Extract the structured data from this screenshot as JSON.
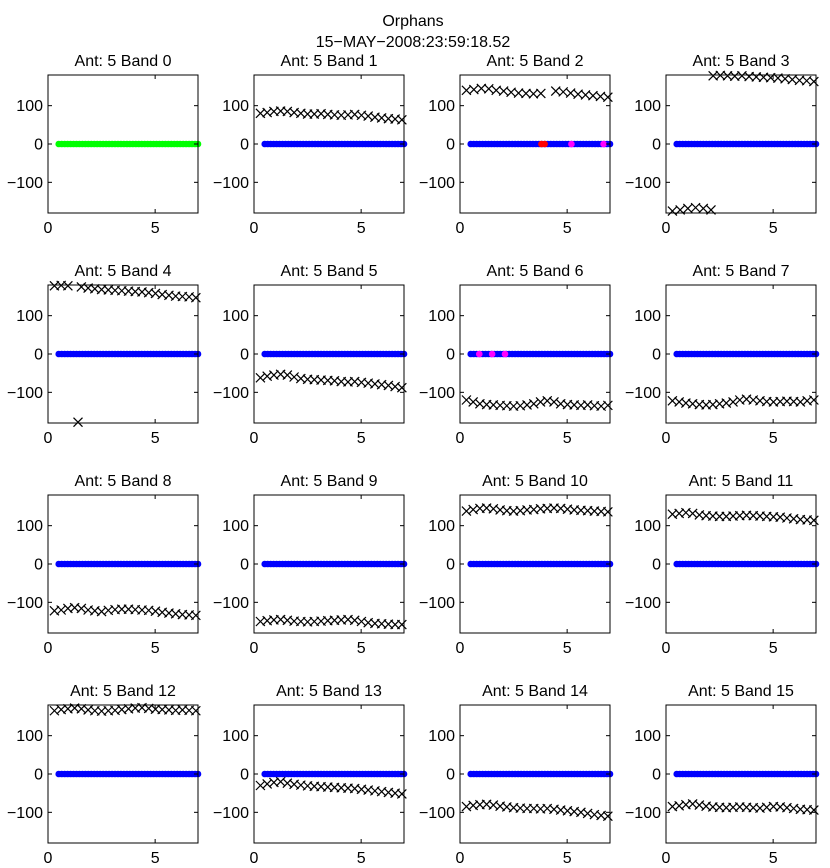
{
  "figure": {
    "title": "Orphans",
    "subtitle": "15−MAY−2008:23:59:18.52"
  },
  "chart_data": [
    {
      "type": "scatter",
      "title": "Ant: 5 Band 0",
      "xlim": [
        0,
        7
      ],
      "ylim": [
        -180,
        180
      ],
      "xticks": [
        "0",
        "5"
      ],
      "yticks": [
        "100",
        "0",
        "−100"
      ],
      "series": [
        {
          "name": "dots",
          "color": "#00ff00",
          "marker": "dot",
          "x_range": [
            0.5,
            7.0
          ],
          "y": [
            0
          ]
        }
      ]
    },
    {
      "type": "scatter",
      "title": "Ant: 5 Band 1",
      "xlim": [
        0,
        7
      ],
      "ylim": [
        -180,
        180
      ],
      "xticks": [
        "0",
        "5"
      ],
      "yticks": [
        "100",
        "0",
        "−100"
      ],
      "series": [
        {
          "name": "phase",
          "color": "#000000",
          "marker": "x",
          "x_range": [
            0.3,
            6.9
          ],
          "y": [
            80,
            82,
            85,
            86,
            85,
            82,
            80,
            78,
            78,
            79,
            77,
            76,
            75,
            76,
            77,
            75,
            73,
            70,
            68,
            66,
            65,
            63
          ]
        },
        {
          "name": "dots",
          "color": "#0000ff",
          "marker": "dot",
          "x_range": [
            0.5,
            7.0
          ],
          "y": [
            0
          ]
        }
      ]
    },
    {
      "type": "scatter",
      "title": "Ant: 5 Band 2",
      "xlim": [
        0,
        7
      ],
      "ylim": [
        -180,
        180
      ],
      "xticks": [
        "0",
        "5"
      ],
      "yticks": [
        "100",
        "0",
        "−100"
      ],
      "series": [
        {
          "name": "phase",
          "color": "#000000",
          "marker": "x",
          "x_range": [
            0.3,
            6.9
          ],
          "y": [
            140,
            142,
            145,
            144,
            140,
            138,
            135,
            133,
            132,
            131,
            132,
            null,
            138,
            136,
            133,
            130,
            128,
            126,
            124,
            122
          ]
        },
        {
          "name": "dots",
          "color": "#0000ff",
          "marker": "dot",
          "x_range": [
            0.5,
            7.0
          ],
          "y": [
            0
          ]
        },
        {
          "name": "red",
          "color": "#ff0000",
          "marker": "dot",
          "points": [
            [
              3.8,
              0
            ],
            [
              3.95,
              0
            ]
          ]
        },
        {
          "name": "magenta",
          "color": "#ff00ff",
          "marker": "dot",
          "points": [
            [
              5.2,
              0
            ],
            [
              6.7,
              0
            ]
          ]
        }
      ]
    },
    {
      "type": "scatter",
      "title": "Ant: 5 Band 3",
      "xlim": [
        0,
        7
      ],
      "ylim": [
        -180,
        180
      ],
      "xticks": [
        "0",
        "5"
      ],
      "yticks": [
        "100",
        "0",
        "−100"
      ],
      "series": [
        {
          "name": "phase_low",
          "color": "#000000",
          "marker": "x",
          "x_range": [
            0.3,
            2.1
          ],
          "y": [
            -175,
            -172,
            -168,
            -166,
            -168,
            -172
          ]
        },
        {
          "name": "phase_high",
          "color": "#000000",
          "marker": "x",
          "x_range": [
            2.2,
            6.9
          ],
          "y": [
            178,
            179,
            178,
            177,
            178,
            176,
            175,
            174,
            173,
            172,
            170,
            168,
            166,
            165,
            163
          ]
        },
        {
          "name": "dots",
          "color": "#0000ff",
          "marker": "dot",
          "x_range": [
            0.5,
            7.0
          ],
          "y": [
            0
          ]
        }
      ]
    },
    {
      "type": "scatter",
      "title": "Ant: 5 Band 4",
      "xlim": [
        0,
        7
      ],
      "ylim": [
        -180,
        180
      ],
      "xticks": [
        "0",
        "5"
      ],
      "yticks": [
        "100",
        "0",
        "−100"
      ],
      "series": [
        {
          "name": "phase",
          "color": "#000000",
          "marker": "x",
          "x_range": [
            0.3,
            6.9
          ],
          "y": [
            178,
            179,
            178,
            null,
            175,
            172,
            170,
            168,
            167,
            166,
            165,
            164,
            163,
            162,
            160,
            158,
            155,
            153,
            151,
            150,
            149,
            147
          ]
        },
        {
          "name": "outlier",
          "color": "#000000",
          "marker": "x",
          "points": [
            [
              1.4,
              -178
            ]
          ]
        },
        {
          "name": "dots",
          "color": "#0000ff",
          "marker": "dot",
          "x_range": [
            0.5,
            7.0
          ],
          "y": [
            0
          ]
        }
      ]
    },
    {
      "type": "scatter",
      "title": "Ant: 5 Band 5",
      "xlim": [
        0,
        7
      ],
      "ylim": [
        -180,
        180
      ],
      "xticks": [
        "0",
        "5"
      ],
      "yticks": [
        "100",
        "0",
        "−100"
      ],
      "series": [
        {
          "name": "phase",
          "color": "#000000",
          "marker": "x",
          "x_range": [
            0.3,
            6.9
          ],
          "y": [
            -62,
            -58,
            -55,
            -53,
            -55,
            -60,
            -64,
            -66,
            -67,
            -68,
            -69,
            -70,
            -72,
            -73,
            -72,
            -74,
            -76,
            -78,
            -80,
            -82,
            -85,
            -88
          ]
        },
        {
          "name": "dots",
          "color": "#0000ff",
          "marker": "dot",
          "x_range": [
            0.5,
            7.0
          ],
          "y": [
            0
          ]
        }
      ]
    },
    {
      "type": "scatter",
      "title": "Ant: 5 Band 6",
      "xlim": [
        0,
        7
      ],
      "ylim": [
        -180,
        180
      ],
      "xticks": [
        "0",
        "5"
      ],
      "yticks": [
        "100",
        "0",
        "−100"
      ],
      "series": [
        {
          "name": "phase",
          "color": "#000000",
          "marker": "x",
          "x_range": [
            0.3,
            6.9
          ],
          "y": [
            -120,
            -125,
            -130,
            -132,
            -133,
            -134,
            -135,
            -136,
            -135,
            -133,
            -130,
            -125,
            -122,
            -125,
            -130,
            -132,
            -133,
            -134,
            -133,
            -135,
            -136,
            -134
          ]
        },
        {
          "name": "dots",
          "color": "#0000ff",
          "marker": "dot",
          "x_range": [
            0.5,
            7.0
          ],
          "y": [
            0
          ]
        },
        {
          "name": "magenta",
          "color": "#ff00ff",
          "marker": "dot",
          "points": [
            [
              0.9,
              0
            ],
            [
              1.5,
              0
            ],
            [
              2.1,
              0
            ]
          ]
        }
      ]
    },
    {
      "type": "scatter",
      "title": "Ant: 5 Band 7",
      "xlim": [
        0,
        7
      ],
      "ylim": [
        -180,
        180
      ],
      "xticks": [
        "0",
        "5"
      ],
      "yticks": [
        "100",
        "0",
        "−100"
      ],
      "series": [
        {
          "name": "phase",
          "color": "#000000",
          "marker": "x",
          "x_range": [
            0.3,
            6.9
          ],
          "y": [
            -122,
            -125,
            -128,
            -130,
            -132,
            -133,
            -132,
            -130,
            -128,
            -125,
            -120,
            -118,
            -120,
            -122,
            -124,
            -125,
            -124,
            -123,
            -124,
            -125,
            -122,
            -120
          ]
        },
        {
          "name": "dots",
          "color": "#0000ff",
          "marker": "dot",
          "x_range": [
            0.5,
            7.0
          ],
          "y": [
            0
          ]
        }
      ]
    },
    {
      "type": "scatter",
      "title": "Ant: 5 Band 8",
      "xlim": [
        0,
        7
      ],
      "ylim": [
        -180,
        180
      ],
      "xticks": [
        "0",
        "5"
      ],
      "yticks": [
        "100",
        "0",
        "−100"
      ],
      "series": [
        {
          "name": "phase",
          "color": "#000000",
          "marker": "x",
          "x_range": [
            0.3,
            6.9
          ],
          "y": [
            -122,
            -120,
            -116,
            -114,
            -116,
            -120,
            -122,
            -124,
            -121,
            -119,
            -118,
            -118,
            -119,
            -120,
            -121,
            -123,
            -126,
            -128,
            -130,
            -132,
            -133,
            -134
          ]
        },
        {
          "name": "dots",
          "color": "#0000ff",
          "marker": "dot",
          "x_range": [
            0.5,
            7.0
          ],
          "y": [
            0
          ]
        }
      ]
    },
    {
      "type": "scatter",
      "title": "Ant: 5 Band 9",
      "xlim": [
        0,
        7
      ],
      "ylim": [
        -180,
        180
      ],
      "xticks": [
        "0",
        "5"
      ],
      "yticks": [
        "100",
        "0",
        "−100"
      ],
      "series": [
        {
          "name": "phase",
          "color": "#000000",
          "marker": "x",
          "x_range": [
            0.3,
            6.9
          ],
          "y": [
            -150,
            -148,
            -146,
            -145,
            -147,
            -149,
            -150,
            -151,
            -150,
            -149,
            -148,
            -147,
            -146,
            -145,
            -147,
            -150,
            -153,
            -155,
            -156,
            -157,
            -158,
            -158
          ]
        },
        {
          "name": "dots",
          "color": "#0000ff",
          "marker": "dot",
          "x_range": [
            0.5,
            7.0
          ],
          "y": [
            0
          ]
        }
      ]
    },
    {
      "type": "scatter",
      "title": "Ant: 5 Band 10",
      "xlim": [
        0,
        7
      ],
      "ylim": [
        -180,
        180
      ],
      "xticks": [
        "0",
        "5"
      ],
      "yticks": [
        "100",
        "0",
        "−100"
      ],
      "series": [
        {
          "name": "phase",
          "color": "#000000",
          "marker": "x",
          "x_range": [
            0.3,
            6.9
          ],
          "y": [
            138,
            142,
            145,
            146,
            144,
            141,
            139,
            138,
            139,
            141,
            142,
            144,
            145,
            146,
            145,
            143,
            141,
            140,
            139,
            138,
            137,
            136
          ]
        },
        {
          "name": "dots",
          "color": "#0000ff",
          "marker": "dot",
          "x_range": [
            0.5,
            7.0
          ],
          "y": [
            0
          ]
        }
      ]
    },
    {
      "type": "scatter",
      "title": "Ant: 5 Band 11",
      "xlim": [
        0,
        7
      ],
      "ylim": [
        -180,
        180
      ],
      "xticks": [
        "0",
        "5"
      ],
      "yticks": [
        "100",
        "0",
        "−100"
      ],
      "series": [
        {
          "name": "phase",
          "color": "#000000",
          "marker": "x",
          "x_range": [
            0.3,
            6.9
          ],
          "y": [
            130,
            132,
            134,
            132,
            128,
            126,
            125,
            124,
            124,
            125,
            126,
            127,
            126,
            125,
            124,
            123,
            122,
            120,
            118,
            116,
            115,
            114
          ]
        },
        {
          "name": "dots",
          "color": "#0000ff",
          "marker": "dot",
          "x_range": [
            0.5,
            7.0
          ],
          "y": [
            0
          ]
        }
      ]
    },
    {
      "type": "scatter",
      "title": "Ant: 5 Band 12",
      "xlim": [
        0,
        7
      ],
      "ylim": [
        -180,
        180
      ],
      "xticks": [
        "0",
        "5"
      ],
      "yticks": [
        "100",
        "0",
        "−100"
      ],
      "series": [
        {
          "name": "phase",
          "color": "#000000",
          "marker": "x",
          "x_range": [
            0.3,
            6.9
          ],
          "y": [
            165,
            168,
            170,
            172,
            170,
            167,
            165,
            164,
            165,
            166,
            168,
            170,
            172,
            173,
            171,
            169,
            168,
            167,
            166,
            167,
            166,
            165
          ]
        },
        {
          "name": "dots",
          "color": "#0000ff",
          "marker": "dot",
          "x_range": [
            0.5,
            7.0
          ],
          "y": [
            0
          ]
        }
      ]
    },
    {
      "type": "scatter",
      "title": "Ant: 5 Band 13",
      "xlim": [
        0,
        7
      ],
      "ylim": [
        -180,
        180
      ],
      "xticks": [
        "0",
        "5"
      ],
      "yticks": [
        "100",
        "0",
        "−100"
      ],
      "series": [
        {
          "name": "phase",
          "color": "#000000",
          "marker": "x",
          "x_range": [
            0.3,
            6.9
          ],
          "y": [
            -30,
            -26,
            -22,
            -20,
            -24,
            -27,
            -29,
            -31,
            -32,
            -33,
            -34,
            -35,
            -36,
            -37,
            -38,
            -40,
            -42,
            -44,
            -46,
            -48,
            -50,
            -52
          ]
        },
        {
          "name": "dots",
          "color": "#0000ff",
          "marker": "dot",
          "x_range": [
            0.5,
            7.0
          ],
          "y": [
            0
          ]
        }
      ]
    },
    {
      "type": "scatter",
      "title": "Ant: 5 Band 14",
      "xlim": [
        0,
        7
      ],
      "ylim": [
        -180,
        180
      ],
      "xticks": [
        "0",
        "5"
      ],
      "yticks": [
        "100",
        "0",
        "−100"
      ],
      "series": [
        {
          "name": "phase",
          "color": "#000000",
          "marker": "x",
          "x_range": [
            0.3,
            6.9
          ],
          "y": [
            -85,
            -82,
            -80,
            -79,
            -81,
            -84,
            -86,
            -88,
            -89,
            -90,
            -90,
            -91,
            -90,
            -92,
            -94,
            -96,
            -98,
            -100,
            -103,
            -106,
            -108,
            -110
          ]
        },
        {
          "name": "dots",
          "color": "#0000ff",
          "marker": "dot",
          "x_range": [
            0.5,
            7.0
          ],
          "y": [
            0
          ]
        }
      ]
    },
    {
      "type": "scatter",
      "title": "Ant: 5 Band 15",
      "xlim": [
        0,
        7
      ],
      "ylim": [
        -180,
        180
      ],
      "xticks": [
        "0",
        "5"
      ],
      "yticks": [
        "100",
        "0",
        "−100"
      ],
      "series": [
        {
          "name": "phase",
          "color": "#000000",
          "marker": "x",
          "x_range": [
            0.3,
            6.9
          ],
          "y": [
            -85,
            -83,
            -80,
            -78,
            -81,
            -84,
            -86,
            -87,
            -88,
            -87,
            -86,
            -87,
            -88,
            -89,
            -87,
            -85,
            -86,
            -88,
            -90,
            -92,
            -93,
            -94
          ]
        },
        {
          "name": "dots",
          "color": "#0000ff",
          "marker": "dot",
          "x_range": [
            0.5,
            7.0
          ],
          "y": [
            0
          ]
        }
      ]
    }
  ]
}
